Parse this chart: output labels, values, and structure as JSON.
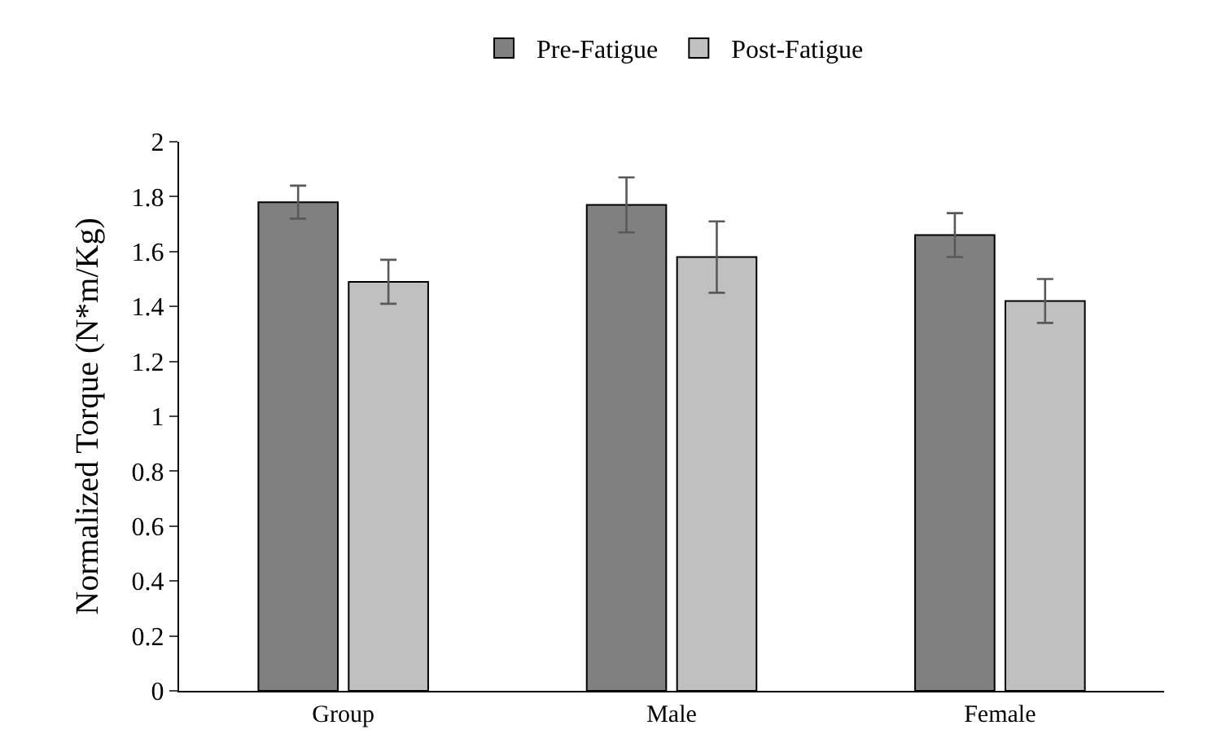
{
  "chart_data": {
    "type": "bar",
    "ylabel": "Normalized Torque (N*m/Kg)",
    "categories": [
      "Group",
      "Male",
      "Female"
    ],
    "series": [
      {
        "name": "Pre-Fatigue",
        "color": "#808080",
        "values": [
          1.78,
          1.77,
          1.66
        ],
        "errors": [
          0.06,
          0.1,
          0.08
        ]
      },
      {
        "name": "Post-Fatigue",
        "color": "#c0c0c0",
        "values": [
          1.49,
          1.58,
          1.42
        ],
        "errors": [
          0.08,
          0.13,
          0.08
        ]
      }
    ],
    "ylim": [
      0,
      2
    ],
    "yticks": [
      0,
      0.2,
      0.4,
      0.6,
      0.8,
      1,
      1.2,
      1.4,
      1.6,
      1.8,
      2
    ],
    "grid": false,
    "legend": "top"
  }
}
